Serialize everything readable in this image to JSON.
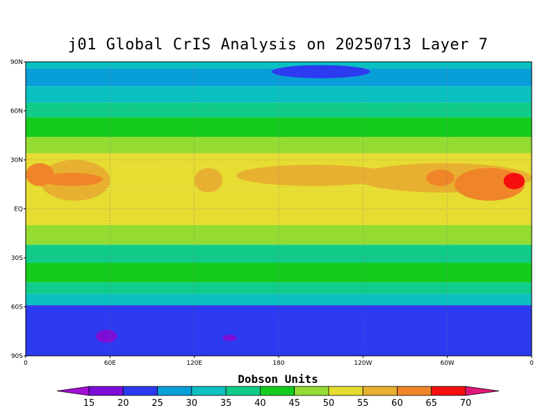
{
  "title": "j01 Global CrIS Analysis on 20250713 Layer 7",
  "colorbar_title": "Dobson Units",
  "lat_ticks": [
    "90N",
    "60N",
    "30N",
    "EQ",
    "30S",
    "60S",
    "90S"
  ],
  "lon_ticks": [
    "0",
    "60E",
    "120E",
    "180",
    "120W",
    "60W",
    "0"
  ],
  "colorbar": {
    "labels": [
      "15",
      "20",
      "25",
      "30",
      "35",
      "40",
      "45",
      "50",
      "55",
      "60",
      "65",
      "70"
    ],
    "colors": [
      "#7d0ed6",
      "#2c3af0",
      "#089ed8",
      "#0ac0c0",
      "#10cc88",
      "#14cc1e",
      "#94dc32",
      "#e6dc32",
      "#e8b030",
      "#f08428",
      "#f50f0f",
      "#e0187a"
    ],
    "under_color": "#a30ed6"
  },
  "zonal_bands": [
    {
      "lat": [
        90,
        86
      ],
      "color": "#0ac0c0"
    },
    {
      "lat": [
        86,
        75
      ],
      "color": "#089ed8"
    },
    {
      "lat": [
        75,
        65
      ],
      "color": "#0ac0c0"
    },
    {
      "lat": [
        65,
        56
      ],
      "color": "#10cc88"
    },
    {
      "lat": [
        56,
        44
      ],
      "color": "#14cc1e"
    },
    {
      "lat": [
        44,
        34
      ],
      "color": "#94dc32"
    },
    {
      "lat": [
        34,
        12
      ],
      "color": "#e6dc32"
    },
    {
      "lat": [
        12,
        -10
      ],
      "color": "#e6dc32"
    },
    {
      "lat": [
        -10,
        -22
      ],
      "color": "#94dc32"
    },
    {
      "lat": [
        -22,
        -33
      ],
      "color": "#10cc88"
    },
    {
      "lat": [
        -33,
        -45
      ],
      "color": "#14cc1e"
    },
    {
      "lat": [
        -45,
        -52
      ],
      "color": "#10cc88"
    },
    {
      "lat": [
        -52,
        -59
      ],
      "color": "#0ac0c0"
    },
    {
      "lat": [
        -59,
        -90
      ],
      "color": "#2c3af0"
    }
  ],
  "features": [
    {
      "lon": [
        10,
        60
      ],
      "lat": [
        30,
        5
      ],
      "color": "#e8b030"
    },
    {
      "lon": [
        0,
        20
      ],
      "lat": [
        28,
        14
      ],
      "color": "#f08428"
    },
    {
      "lon": [
        120,
        140
      ],
      "lat": [
        25,
        10
      ],
      "color": "#e8b030"
    },
    {
      "lon": [
        150,
        260
      ],
      "lat": [
        27,
        14
      ],
      "color": "#e8b030"
    },
    {
      "lon": [
        235,
        360
      ],
      "lat": [
        28,
        10
      ],
      "color": "#e8b030"
    },
    {
      "lon": [
        285,
        305
      ],
      "lat": [
        24,
        14
      ],
      "color": "#f08428"
    },
    {
      "lon": [
        305,
        355
      ],
      "lat": [
        25,
        5
      ],
      "color": "#f08428"
    },
    {
      "lon": [
        340,
        355
      ],
      "lat": [
        22,
        12
      ],
      "color": "#f50f0f"
    },
    {
      "lon": [
        10,
        55
      ],
      "lat": [
        22,
        14
      ],
      "color": "#f08428"
    },
    {
      "lon": [
        175,
        245
      ],
      "lat": [
        88,
        80
      ],
      "color": "#2c3af0"
    },
    {
      "lon": [
        50,
        65
      ],
      "lat": [
        -74,
        -82
      ],
      "color": "#7d0ed6"
    },
    {
      "lon": [
        140,
        150
      ],
      "lat": [
        -77,
        -81
      ],
      "color": "#7d0ed6"
    }
  ]
}
